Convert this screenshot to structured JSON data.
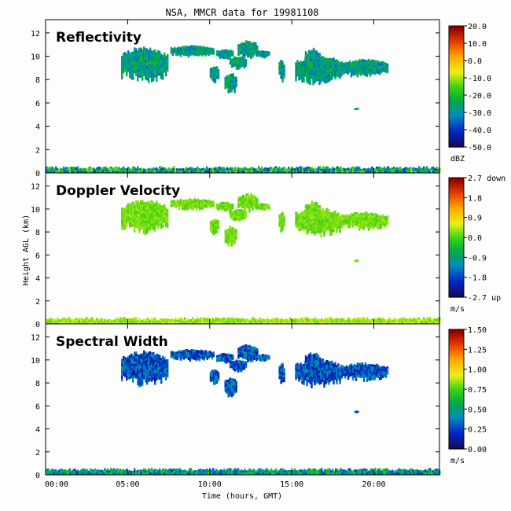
{
  "chart_data": {
    "type": "heatmap",
    "title": "NSA, MMCR data for 19981108",
    "xlabel": "Time (hours, GMT)",
    "ylabel": "Height AGL (km)",
    "xlim": [
      0,
      24
    ],
    "ylim": [
      0,
      13
    ],
    "xticks": [
      "00:00",
      "05:00",
      "10:00",
      "15:00",
      "20:00"
    ],
    "yticks": [
      "0",
      "2",
      "4",
      "6",
      "8",
      "10",
      "12"
    ],
    "panels": [
      {
        "name": "Reflectivity",
        "colorbar_ticks": [
          "20.0",
          "10.0",
          "0.0",
          "-10.0",
          "-20.0",
          "-30.0",
          "-40.0",
          "-50.0"
        ],
        "colorbar_range": [
          -50,
          20
        ],
        "units": "dBZ",
        "cloud_values": [
          -35,
          -20
        ],
        "surface_values": [
          -40,
          -10
        ]
      },
      {
        "name": "Doppler Velocity",
        "colorbar_ticks": [
          "2.7 down",
          "1.8",
          "0.9",
          "0.0",
          "-0.9",
          "-1.8",
          "-2.7 up"
        ],
        "colorbar_range": [
          -2.7,
          2.7
        ],
        "units": "m/s",
        "cloud_values": [
          0.0,
          0.4
        ],
        "surface_values": [
          0.1,
          0.6
        ]
      },
      {
        "name": "Spectral Width",
        "colorbar_ticks": [
          "1.50",
          "1.25",
          "1.00",
          "0.75",
          "0.50",
          "0.25",
          "0.00"
        ],
        "colorbar_range": [
          0,
          1.5
        ],
        "units": "m/s",
        "cloud_values": [
          0.1,
          0.45
        ],
        "surface_values": [
          0.2,
          0.75
        ]
      }
    ],
    "cloud_features_hours_km": [
      {
        "t0": 4.6,
        "t1": 7.4,
        "base": 8.0,
        "top": 10.7
      },
      {
        "t0": 7.6,
        "t1": 10.2,
        "base": 10.0,
        "top": 10.9
      },
      {
        "t0": 10.4,
        "t1": 11.4,
        "base": 9.8,
        "top": 10.6
      },
      {
        "t0": 11.2,
        "t1": 12.2,
        "base": 9.0,
        "top": 10.0
      },
      {
        "t0": 11.7,
        "t1": 12.9,
        "base": 9.9,
        "top": 11.3
      },
      {
        "t0": 12.8,
        "t1": 13.6,
        "base": 9.9,
        "top": 10.5
      },
      {
        "t0": 10.9,
        "t1": 11.6,
        "base": 6.9,
        "top": 8.5
      },
      {
        "t0": 10.0,
        "t1": 10.5,
        "base": 7.9,
        "top": 9.2
      },
      {
        "t0": 15.2,
        "t1": 18.0,
        "base": 7.8,
        "top": 10.0
      },
      {
        "t0": 18.0,
        "t1": 20.8,
        "base": 8.3,
        "top": 9.7
      },
      {
        "t0": 14.2,
        "t1": 14.5,
        "base": 7.9,
        "top": 9.7
      },
      {
        "t0": 15.8,
        "t1": 16.7,
        "base": 8.8,
        "top": 10.6
      },
      {
        "t0": 18.8,
        "t1": 19.0,
        "base": 5.4,
        "top": 5.6
      }
    ],
    "surface_layer_hours_km": {
      "t0": 0,
      "t1": 24,
      "base": 0.0,
      "top": 0.6
    }
  }
}
